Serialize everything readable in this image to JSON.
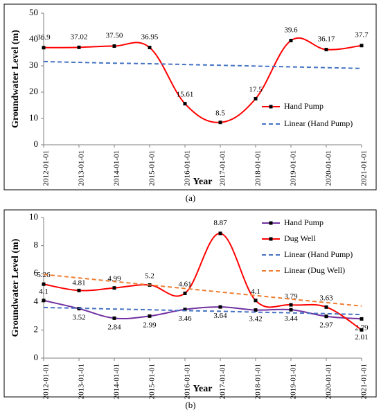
{
  "captions": [
    "(a)",
    "(b)"
  ],
  "chart_data": [
    {
      "type": "line",
      "title": "",
      "xlabel": "Year",
      "ylabel": "Groundwater Level (m)",
      "ylim": [
        0,
        50
      ],
      "yticks": [
        0,
        10,
        20,
        30,
        40,
        50
      ],
      "categories": [
        "2012-01-01",
        "2013-01-01",
        "2014-01-01",
        "2015-01-01",
        "2016-01-01",
        "2017-01-01",
        "2018-01-01",
        "2019-01-01",
        "2020-01-01",
        "2021-01-01"
      ],
      "grid": false,
      "legend_position": "right",
      "series": [
        {
          "name": "Hand Pump",
          "kind": "line",
          "color": "#ff0000",
          "values": [
            36.9,
            37.02,
            37.5,
            36.95,
            15.61,
            8.5,
            17.5,
            39.6,
            36.17,
            37.7
          ],
          "labels": [
            "36.9",
            "37.02",
            "37.50",
            "36.95",
            "15.61",
            "8.5",
            "17.5",
            "39.6",
            "36.17",
            "37.7"
          ]
        },
        {
          "name": "Linear (Hand Pump)",
          "kind": "trend",
          "color": "#4472c4",
          "values": [
            31.6,
            31.3,
            31.0,
            30.8,
            30.5,
            30.2,
            29.9,
            29.6,
            29.3,
            29.0
          ]
        }
      ]
    },
    {
      "type": "line",
      "title": "",
      "xlabel": "Year",
      "ylabel": "Groundwater Level (m)",
      "ylim": [
        0,
        10
      ],
      "yticks": [
        0,
        2,
        4,
        6,
        8,
        10
      ],
      "categories": [
        "2012-01-01",
        "2013-01-01",
        "2014-01-01",
        "2015-01-01",
        "2016-01-01",
        "2017-01-01",
        "2018-01-01",
        "2019-01-01",
        "2020-01-01",
        "2021-01-01"
      ],
      "grid": false,
      "legend_position": "top-right",
      "series": [
        {
          "name": "Hand Pump",
          "kind": "line",
          "color": "#7030a0",
          "values": [
            4.1,
            3.52,
            2.84,
            2.99,
            3.46,
            3.64,
            3.42,
            3.44,
            2.97,
            2.79
          ],
          "labels": [
            "4.1",
            "3.52",
            "2.84",
            "2.99",
            "3.46",
            "3.64",
            "3.42",
            "3.44",
            "2.97",
            "2.79"
          ]
        },
        {
          "name": "Dug Well",
          "kind": "line",
          "color": "#ff0000",
          "values": [
            5.26,
            4.81,
            4.99,
            5.2,
            4.61,
            8.87,
            4.1,
            3.79,
            3.63,
            2.01
          ],
          "labels": [
            "5.26",
            "4.81",
            "4.99",
            "5.2",
            "4.61",
            "8.87",
            "4.1",
            "3.79",
            "3.63",
            "2.01"
          ]
        },
        {
          "name": "Linear (Hand Pump)",
          "kind": "trend",
          "color": "#4472c4",
          "values": [
            3.6,
            3.55,
            3.49,
            3.44,
            3.38,
            3.33,
            3.27,
            3.22,
            3.16,
            3.1
          ]
        },
        {
          "name": "Linear (Dug Well)",
          "kind": "trend",
          "color": "#ed7d31",
          "values": [
            5.95,
            5.7,
            5.45,
            5.2,
            4.95,
            4.7,
            4.45,
            4.2,
            3.95,
            3.7
          ]
        }
      ]
    }
  ]
}
